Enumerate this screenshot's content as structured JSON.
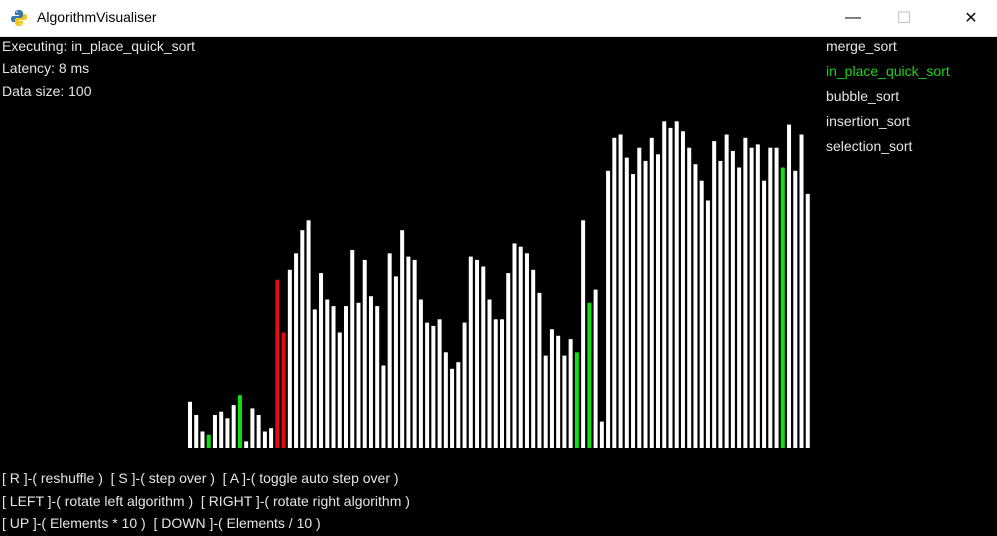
{
  "window": {
    "title": "AlgorithmVisualiser",
    "minimize_glyph": "—",
    "maximize_glyph": "☐",
    "close_glyph": "✕"
  },
  "status": {
    "executing": "Executing: in_place_quick_sort",
    "latency": "Latency: 8 ms",
    "data_size": "Data size: 100"
  },
  "algorithms": [
    {
      "name": "merge_sort",
      "active": false
    },
    {
      "name": "in_place_quick_sort",
      "active": true
    },
    {
      "name": "bubble_sort",
      "active": false
    },
    {
      "name": "insertion_sort",
      "active": false
    },
    {
      "name": "selection_sort",
      "active": false
    }
  ],
  "help": [
    "[ R ]-( reshuffle )  [ S ]-( step over )  [ A ]-( toggle auto step over )",
    "[ LEFT ]-( rotate left algorithm )  [ RIGHT ]-( rotate right algorithm )",
    "[ UP ]-( Elements * 10 )  [ DOWN ]-( Elements / 10 )"
  ],
  "colors": {
    "bar": "#ffffff",
    "pivot": "#e01010",
    "highlight": "#10e010",
    "background": "#000000"
  },
  "chart_data": {
    "type": "bar",
    "count": 100,
    "values": [
      14,
      10,
      5,
      4,
      10,
      11,
      9,
      13,
      16,
      2,
      12,
      10,
      5,
      6,
      51,
      35,
      54,
      59,
      66,
      69,
      42,
      53,
      45,
      43,
      35,
      43,
      60,
      44,
      57,
      46,
      43,
      25,
      59,
      52,
      66,
      58,
      57,
      45,
      38,
      37,
      39,
      29,
      24,
      26,
      38,
      58,
      57,
      55,
      45,
      39,
      39,
      53,
      62,
      61,
      59,
      54,
      47,
      28,
      36,
      34,
      28,
      33,
      29,
      69,
      44,
      48,
      8,
      84,
      94,
      95,
      88,
      83,
      91,
      87,
      94,
      89,
      99,
      97,
      99,
      96,
      91,
      86,
      81,
      75,
      93,
      87,
      95,
      90,
      85,
      94,
      91,
      92,
      81,
      91,
      91,
      85,
      98,
      84,
      95,
      77
    ],
    "pivot_indices": [
      14,
      15
    ],
    "highlight_indices": [
      3,
      8,
      62,
      64,
      95
    ],
    "ylim": [
      0,
      100
    ]
  }
}
